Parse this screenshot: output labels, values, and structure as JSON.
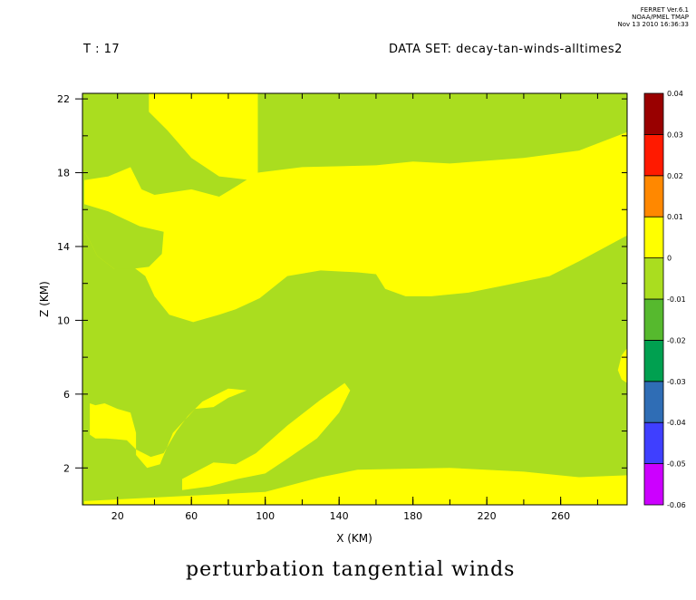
{
  "header": {
    "stamp_line1": "FERRET Ver.6.1",
    "stamp_line2": "NOAA/PMEL TMAP",
    "stamp_line3": "Nov 13 2010 16:36:33",
    "time_label": "T : 17",
    "dataset_label": "DATA SET: decay-tan-winds-alltimes2"
  },
  "chart_data": {
    "type": "heatmap",
    "title": "perturbation tangential winds",
    "xlabel": "X (KM)",
    "ylabel": "Z (KM)",
    "xlim": [
      1,
      296
    ],
    "ylim": [
      0,
      22.3
    ],
    "x_ticks": [
      20,
      60,
      100,
      140,
      180,
      220,
      260
    ],
    "y_ticks": [
      2,
      6,
      10,
      14,
      18,
      22
    ],
    "colorbar": {
      "levels": [
        -0.06,
        -0.05,
        -0.04,
        -0.03,
        -0.02,
        -0.01,
        0,
        0.01,
        0.02,
        0.03,
        0.04
      ],
      "level_labels": [
        "-0.06",
        "-0.05",
        "-0.04",
        "-0.03",
        "-0.02",
        "-0.01",
        "0",
        "0.01",
        "0.02",
        "0.03",
        "0.04"
      ],
      "colors": [
        "#cc00ff",
        "#3f3fff",
        "#2f6db5",
        "#00a050",
        "#56b92e",
        "#aadd1f",
        "#ffff00",
        "#ff8800",
        "#ff1a00",
        "#990000"
      ]
    },
    "regions": [
      {
        "name": "background",
        "value_band": "-0.01 to 0",
        "color": "#aadd1f",
        "points": [
          [
            1,
            0
          ],
          [
            296,
            0
          ],
          [
            296,
            22.3
          ],
          [
            1,
            22.3
          ]
        ]
      },
      {
        "name": "positive-top",
        "value_band": "0 to 0.01",
        "color": "#ffff00",
        "points": [
          [
            37,
            22.3
          ],
          [
            96,
            22.3
          ],
          [
            96,
            18
          ],
          [
            92,
            17.6
          ],
          [
            75,
            17.8
          ],
          [
            60,
            18.8
          ],
          [
            47,
            20.3
          ],
          [
            37,
            21.3
          ]
        ]
      },
      {
        "name": "positive-upper-band",
        "value_band": "0 to 0.01",
        "color": "#ffff00",
        "points": [
          [
            2,
            17.6
          ],
          [
            15,
            17.8
          ],
          [
            27,
            18.3
          ],
          [
            33,
            17.1
          ],
          [
            40,
            16.8
          ],
          [
            60,
            17.1
          ],
          [
            75,
            16.7
          ],
          [
            85,
            17.3
          ],
          [
            96,
            18.0
          ],
          [
            120,
            18.3
          ],
          [
            160,
            18.4
          ],
          [
            180,
            18.6
          ],
          [
            200,
            18.5
          ],
          [
            240,
            18.8
          ],
          [
            270,
            19.2
          ],
          [
            296,
            20.2
          ],
          [
            296,
            14.6
          ],
          [
            283,
            13.9
          ],
          [
            270,
            13.2
          ],
          [
            254,
            12.4
          ],
          [
            230,
            11.9
          ],
          [
            210,
            11.5
          ],
          [
            190,
            11.3
          ],
          [
            176,
            11.3
          ],
          [
            165,
            11.7
          ],
          [
            160,
            12.5
          ],
          [
            150,
            12.6
          ],
          [
            130,
            12.7
          ],
          [
            112,
            12.4
          ],
          [
            97,
            11.2
          ],
          [
            84,
            10.6
          ],
          [
            75,
            10.3
          ],
          [
            61,
            9.9
          ],
          [
            48,
            10.3
          ],
          [
            40,
            11.3
          ],
          [
            35,
            12.4
          ],
          [
            27,
            13.0
          ],
          [
            18,
            12.8
          ],
          [
            9,
            13.5
          ],
          [
            5,
            14.3
          ],
          [
            2,
            14.8
          ]
        ]
      },
      {
        "name": "negative-left-patch",
        "value_band": "-0.01 to 0",
        "color": "#aadd1f",
        "points": [
          [
            2,
            16.3
          ],
          [
            15,
            15.9
          ],
          [
            32,
            15.1
          ],
          [
            45,
            14.8
          ],
          [
            44,
            13.6
          ],
          [
            37,
            12.9
          ],
          [
            29,
            12.8
          ],
          [
            18,
            12.8
          ],
          [
            9,
            13.5
          ],
          [
            5,
            14.3
          ],
          [
            2,
            14.8
          ]
        ]
      },
      {
        "name": "positive-lower-band",
        "value_band": "0 to 0.01",
        "color": "#ffff00",
        "points": [
          [
            2,
            0.2
          ],
          [
            100,
            0.7
          ],
          [
            130,
            1.5
          ],
          [
            150,
            1.9
          ],
          [
            200,
            2.0
          ],
          [
            240,
            1.8
          ],
          [
            270,
            1.5
          ],
          [
            296,
            1.6
          ],
          [
            296,
            0
          ],
          [
            2,
            0
          ]
        ]
      },
      {
        "name": "positive-tongue",
        "value_band": "0 to 0.01",
        "color": "#ffff00",
        "points": [
          [
            55,
            1.4
          ],
          [
            72,
            2.3
          ],
          [
            84,
            2.2
          ],
          [
            95,
            2.8
          ],
          [
            112,
            4.3
          ],
          [
            130,
            5.7
          ],
          [
            143,
            6.6
          ],
          [
            146,
            6.2
          ],
          [
            140,
            5.0
          ],
          [
            128,
            3.6
          ],
          [
            112,
            2.5
          ],
          [
            100,
            1.7
          ],
          [
            85,
            1.4
          ],
          [
            70,
            1.0
          ],
          [
            55,
            0.8
          ]
        ]
      },
      {
        "name": "positive-lower-left-blob",
        "value_band": "0 to 0.01",
        "color": "#ffff00",
        "points": [
          [
            5,
            5.5
          ],
          [
            8,
            5.4
          ],
          [
            13,
            5.5
          ],
          [
            20,
            5.2
          ],
          [
            27,
            5.0
          ],
          [
            30,
            3.9
          ],
          [
            30,
            2.7
          ],
          [
            36,
            2.0
          ],
          [
            43,
            2.2
          ],
          [
            50,
            3.9
          ],
          [
            62,
            5.2
          ],
          [
            72,
            5.3
          ],
          [
            80,
            5.8
          ],
          [
            90,
            6.2
          ],
          [
            80,
            6.3
          ],
          [
            66,
            5.6
          ],
          [
            58,
            4.8
          ],
          [
            52,
            4.0
          ],
          [
            45,
            2.8
          ],
          [
            38,
            2.6
          ],
          [
            30,
            3.0
          ],
          [
            25,
            3.5
          ],
          [
            14,
            3.6
          ],
          [
            8,
            3.6
          ],
          [
            5,
            3.8
          ]
        ]
      },
      {
        "name": "positive-right-edge",
        "value_band": "0 to 0.01",
        "color": "#ffff00",
        "points": [
          [
            296,
            8.5
          ],
          [
            293,
            8.1
          ],
          [
            291,
            7.3
          ],
          [
            293,
            6.8
          ],
          [
            296,
            6.6
          ]
        ]
      }
    ]
  }
}
